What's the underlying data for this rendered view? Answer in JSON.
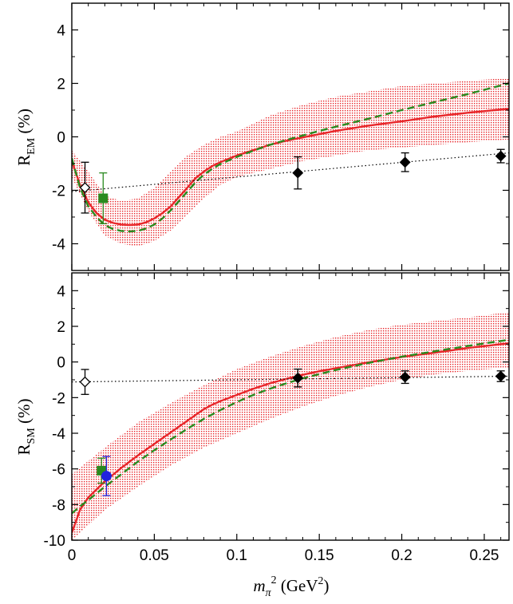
{
  "chart_data": [
    {
      "type": "line",
      "panel": "top",
      "ylabel_main": "R",
      "ylabel_sub": "EM",
      "ylabel_unit": "(%)",
      "xlim": [
        0,
        0.265
      ],
      "ylim": [
        -5,
        5
      ],
      "yticks": [
        -4,
        -2,
        0,
        2,
        4
      ],
      "ytick_labels": [
        "-4",
        "-2",
        "0",
        "2",
        "4"
      ],
      "band": {
        "name": "error band",
        "color": "#e8262a",
        "x": [
          0,
          0.01,
          0.02,
          0.03,
          0.04,
          0.05,
          0.06,
          0.07,
          0.08,
          0.09,
          0.1,
          0.12,
          0.14,
          0.16,
          0.18,
          0.2,
          0.22,
          0.24,
          0.265
        ],
        "lower": [
          -1.5,
          -2.8,
          -3.7,
          -4.0,
          -4.1,
          -3.9,
          -3.5,
          -2.9,
          -2.3,
          -1.8,
          -1.5,
          -1.2,
          -0.9,
          -0.7,
          -0.5,
          -0.4,
          -0.3,
          -0.2,
          -0.1
        ],
        "upper": [
          -0.5,
          -1.3,
          -2.2,
          -2.4,
          -2.3,
          -1.9,
          -1.3,
          -0.7,
          -0.3,
          0.0,
          0.2,
          0.8,
          1.2,
          1.5,
          1.7,
          1.9,
          2.0,
          2.1,
          2.2
        ]
      },
      "series": [
        {
          "name": "solid",
          "color": "#e8262a",
          "x": [
            0,
            0.005,
            0.01,
            0.015,
            0.02,
            0.025,
            0.03,
            0.035,
            0.04,
            0.045,
            0.05,
            0.055,
            0.06,
            0.065,
            0.07,
            0.075,
            0.08,
            0.085,
            0.09,
            0.1,
            0.11,
            0.12,
            0.13,
            0.14,
            0.15,
            0.16,
            0.18,
            0.2,
            0.22,
            0.24,
            0.265
          ],
          "y": [
            -0.9,
            -1.8,
            -2.45,
            -2.85,
            -3.1,
            -3.22,
            -3.28,
            -3.3,
            -3.28,
            -3.2,
            -3.05,
            -2.85,
            -2.6,
            -2.25,
            -1.9,
            -1.55,
            -1.3,
            -1.1,
            -0.95,
            -0.7,
            -0.5,
            -0.3,
            -0.15,
            -0.02,
            0.1,
            0.22,
            0.42,
            0.58,
            0.76,
            0.9,
            1.05
          ]
        },
        {
          "name": "dashed",
          "color": "#2a8a1f",
          "x": [
            0,
            0.005,
            0.01,
            0.015,
            0.02,
            0.025,
            0.03,
            0.035,
            0.04,
            0.045,
            0.05,
            0.055,
            0.06,
            0.065,
            0.07,
            0.075,
            0.08,
            0.085,
            0.09,
            0.1,
            0.11,
            0.12,
            0.13,
            0.14,
            0.15,
            0.16,
            0.18,
            0.2,
            0.22,
            0.24,
            0.265
          ],
          "y": [
            -0.8,
            -1.9,
            -2.6,
            -3.0,
            -3.3,
            -3.45,
            -3.52,
            -3.54,
            -3.52,
            -3.43,
            -3.28,
            -3.05,
            -2.75,
            -2.4,
            -2.05,
            -1.7,
            -1.42,
            -1.2,
            -1.02,
            -0.75,
            -0.52,
            -0.3,
            -0.12,
            0.05,
            0.22,
            0.38,
            0.68,
            1.0,
            1.3,
            1.6,
            2.0
          ]
        },
        {
          "name": "dotted",
          "color": "#000000",
          "x": [
            0,
            0.265
          ],
          "y": [
            -2.05,
            -0.6
          ]
        }
      ],
      "points": [
        {
          "name": "open-diamond",
          "shape": "diamond",
          "filled": false,
          "color": "#000000",
          "x": 0.008,
          "y": -1.9,
          "err": 0.95
        },
        {
          "name": "green-square",
          "shape": "square",
          "filled": true,
          "color": "#2a8a1f",
          "x": 0.019,
          "y": -2.3,
          "err": 0.95
        },
        {
          "name": "diamond-1",
          "shape": "diamond",
          "filled": true,
          "color": "#000000",
          "x": 0.137,
          "y": -1.35,
          "err": 0.6
        },
        {
          "name": "diamond-2",
          "shape": "diamond",
          "filled": true,
          "color": "#000000",
          "x": 0.202,
          "y": -0.95,
          "err": 0.35
        },
        {
          "name": "diamond-3",
          "shape": "diamond",
          "filled": true,
          "color": "#000000",
          "x": 0.26,
          "y": -0.72,
          "err": 0.25
        }
      ]
    },
    {
      "type": "line",
      "panel": "bottom",
      "ylabel_main": "R",
      "ylabel_sub": "SM",
      "ylabel_unit": "(%)",
      "xlim": [
        0,
        0.265
      ],
      "ylim": [
        -10,
        5
      ],
      "yticks": [
        -10,
        -8,
        -6,
        -4,
        -2,
        0,
        2,
        4
      ],
      "ytick_labels": [
        "-10",
        "-8",
        "-6",
        "-4",
        "-2",
        "0",
        "2",
        "4"
      ],
      "band": {
        "name": "error band",
        "color": "#e8262a",
        "x": [
          0,
          0.02,
          0.04,
          0.06,
          0.08,
          0.1,
          0.12,
          0.14,
          0.16,
          0.18,
          0.2,
          0.22,
          0.24,
          0.265
        ],
        "lower": [
          -10.0,
          -8.3,
          -7.0,
          -5.8,
          -4.8,
          -4.0,
          -3.2,
          -2.5,
          -1.9,
          -1.4,
          -1.0,
          -0.7,
          -0.5,
          -0.3
        ],
        "upper": [
          -6.3,
          -4.8,
          -3.4,
          -2.3,
          -1.3,
          -0.4,
          0.3,
          0.9,
          1.4,
          1.8,
          2.1,
          2.3,
          2.5,
          2.8
        ]
      },
      "series": [
        {
          "name": "solid",
          "color": "#e8262a",
          "x": [
            0,
            0.005,
            0.01,
            0.02,
            0.03,
            0.04,
            0.05,
            0.06,
            0.07,
            0.08,
            0.085,
            0.09,
            0.1,
            0.11,
            0.12,
            0.13,
            0.14,
            0.15,
            0.16,
            0.18,
            0.2,
            0.22,
            0.24,
            0.265
          ],
          "y": [
            -9.6,
            -8.3,
            -7.6,
            -6.7,
            -5.95,
            -5.25,
            -4.6,
            -3.95,
            -3.3,
            -2.65,
            -2.4,
            -2.2,
            -1.85,
            -1.5,
            -1.2,
            -0.95,
            -0.72,
            -0.52,
            -0.35,
            -0.02,
            0.28,
            0.52,
            0.78,
            1.05
          ]
        },
        {
          "name": "dashed",
          "color": "#2a8a1f",
          "x": [
            0,
            0.005,
            0.01,
            0.02,
            0.03,
            0.04,
            0.05,
            0.06,
            0.07,
            0.08,
            0.09,
            0.1,
            0.11,
            0.12,
            0.13,
            0.14,
            0.15,
            0.16,
            0.18,
            0.2,
            0.22,
            0.24,
            0.265
          ],
          "y": [
            -8.5,
            -8.1,
            -7.75,
            -7.0,
            -6.3,
            -5.6,
            -4.95,
            -4.35,
            -3.75,
            -3.2,
            -2.7,
            -2.25,
            -1.85,
            -1.5,
            -1.2,
            -0.92,
            -0.68,
            -0.45,
            -0.05,
            0.3,
            0.6,
            0.9,
            1.25
          ]
        },
        {
          "name": "dotted",
          "color": "#000000",
          "x": [
            0,
            0.265
          ],
          "y": [
            -1.12,
            -0.8
          ]
        }
      ],
      "points": [
        {
          "name": "open-diamond",
          "shape": "diamond",
          "filled": false,
          "color": "#000000",
          "x": 0.008,
          "y": -1.12,
          "err": 0.7
        },
        {
          "name": "green-square",
          "shape": "square",
          "filled": true,
          "color": "#2a8a1f",
          "x": 0.018,
          "y": -6.1,
          "err": 0.7
        },
        {
          "name": "blue-circle",
          "shape": "circle",
          "filled": true,
          "color": "#2222dd",
          "x": 0.021,
          "y": -6.4,
          "err": 1.1
        },
        {
          "name": "diamond-1",
          "shape": "diamond",
          "filled": true,
          "color": "#000000",
          "x": 0.137,
          "y": -0.9,
          "err": 0.5
        },
        {
          "name": "diamond-2",
          "shape": "diamond",
          "filled": true,
          "color": "#000000",
          "x": 0.202,
          "y": -0.85,
          "err": 0.35
        },
        {
          "name": "diamond-3",
          "shape": "diamond",
          "filled": true,
          "color": "#000000",
          "x": 0.26,
          "y": -0.8,
          "err": 0.3
        }
      ]
    }
  ],
  "x_axis": {
    "ticks": [
      0,
      0.05,
      0.1,
      0.15,
      0.2,
      0.25
    ],
    "tick_labels": [
      "0",
      "0.05",
      "0.1",
      "0.15",
      "0.2",
      "0.25"
    ],
    "label_var": "m",
    "label_sub": "π",
    "label_sup": "2",
    "label_unit_open": "(GeV",
    "label_unit_sup": "2",
    "label_unit_close": ")"
  }
}
